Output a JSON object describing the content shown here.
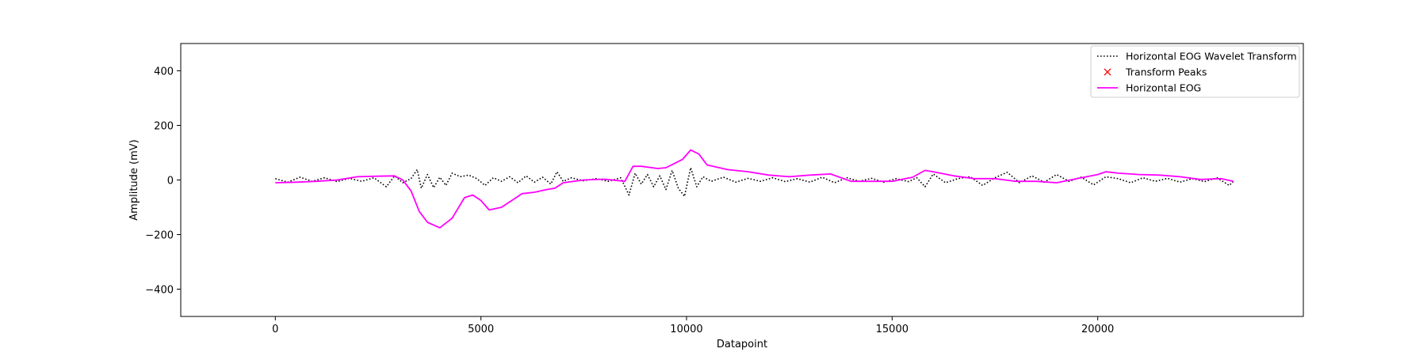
{
  "chart_data": {
    "type": "line",
    "xlabel": "Datapoint",
    "ylabel": "Amplitude (mV)",
    "xlim": [
      -2300,
      25000
    ],
    "ylim": [
      -500,
      500
    ],
    "x_ticks": [
      0,
      5000,
      10000,
      15000,
      20000
    ],
    "x_tick_labels": [
      "0",
      "5000",
      "10000",
      "15000",
      "20000"
    ],
    "y_ticks": [
      -400,
      -200,
      0,
      200,
      400
    ],
    "y_tick_labels": [
      "−400",
      "−200",
      "0",
      "200",
      "400"
    ],
    "grid": false,
    "legend_position": "top-right",
    "legend": [
      {
        "label": "Horizontal EOG Wavelet Transform",
        "style": "dotted",
        "color": "#000000"
      },
      {
        "label": "Transform Peaks",
        "style": "x-marker",
        "color": "#ff0000"
      },
      {
        "label": "Horizontal EOG",
        "style": "solid",
        "color": "#ff00ff"
      }
    ],
    "series": [
      {
        "name": "Horizontal EOG",
        "color": "#ff00ff",
        "style": "solid",
        "x": [
          0,
          500,
          1000,
          1500,
          2000,
          2500,
          2900,
          3100,
          3300,
          3500,
          3700,
          4000,
          4300,
          4600,
          4800,
          5000,
          5200,
          5500,
          5800,
          6000,
          6300,
          6600,
          6800,
          7000,
          7500,
          8000,
          8500,
          8700,
          8900,
          9300,
          9500,
          9700,
          9900,
          10100,
          10300,
          10500,
          11000,
          11500,
          12000,
          12500,
          13000,
          13500,
          14000,
          14500,
          15000,
          15500,
          15800,
          16000,
          16500,
          17000,
          17500,
          18000,
          18500,
          19000,
          19500,
          20000,
          20200,
          20500,
          21000,
          21500,
          22000,
          22500,
          23000,
          23300
        ],
        "y": [
          -10,
          -8,
          -5,
          0,
          12,
          14,
          15,
          0,
          -40,
          -115,
          -155,
          -175,
          -140,
          -65,
          -55,
          -75,
          -110,
          -100,
          -70,
          -50,
          -45,
          -35,
          -30,
          -10,
          0,
          3,
          -5,
          50,
          50,
          42,
          45,
          60,
          75,
          110,
          95,
          55,
          38,
          30,
          18,
          12,
          18,
          22,
          -5,
          -5,
          -5,
          10,
          35,
          30,
          15,
          5,
          5,
          -5,
          -5,
          -10,
          5,
          20,
          30,
          25,
          20,
          18,
          12,
          2,
          5,
          -5
        ]
      },
      {
        "name": "Horizontal EOG Wavelet Transform",
        "color": "#000000",
        "style": "dotted",
        "x": [
          0,
          300,
          600,
          900,
          1200,
          1500,
          1800,
          2100,
          2400,
          2700,
          2900,
          3100,
          3300,
          3450,
          3550,
          3700,
          3850,
          4000,
          4150,
          4300,
          4500,
          4700,
          4900,
          5100,
          5300,
          5500,
          5700,
          5900,
          6100,
          6300,
          6500,
          6700,
          6850,
          7000,
          7200,
          7500,
          7800,
          8100,
          8400,
          8600,
          8750,
          8900,
          9050,
          9200,
          9350,
          9500,
          9650,
          9800,
          9950,
          10100,
          10250,
          10400,
          10600,
          10900,
          11200,
          11500,
          11800,
          12100,
          12400,
          12700,
          13000,
          13300,
          13600,
          13900,
          14200,
          14500,
          14800,
          15100,
          15400,
          15600,
          15800,
          16000,
          16300,
          16600,
          16900,
          17200,
          17500,
          17800,
          18100,
          18400,
          18700,
          19000,
          19300,
          19600,
          19900,
          20200,
          20500,
          20800,
          21100,
          21400,
          21700,
          22000,
          22300,
          22600,
          22900,
          23200,
          23300
        ],
        "y": [
          5,
          -8,
          10,
          -5,
          8,
          -6,
          6,
          -5,
          8,
          -25,
          15,
          -10,
          5,
          38,
          -30,
          20,
          -28,
          10,
          -20,
          25,
          12,
          18,
          5,
          -20,
          8,
          -5,
          12,
          -10,
          15,
          -8,
          10,
          -15,
          30,
          -5,
          8,
          -3,
          5,
          -5,
          8,
          -55,
          25,
          -15,
          20,
          -25,
          15,
          -35,
          35,
          -30,
          -60,
          45,
          -25,
          12,
          -5,
          10,
          -8,
          6,
          -5,
          8,
          -6,
          5,
          -8,
          10,
          -10,
          8,
          -5,
          6,
          -8,
          5,
          -6,
          8,
          -25,
          22,
          -10,
          5,
          12,
          -20,
          8,
          28,
          -10,
          15,
          -8,
          20,
          -5,
          10,
          -18,
          12,
          5,
          -10,
          8,
          -5,
          6,
          -8,
          5,
          -6,
          8,
          -20,
          -5
        ]
      }
    ],
    "peaks": []
  }
}
